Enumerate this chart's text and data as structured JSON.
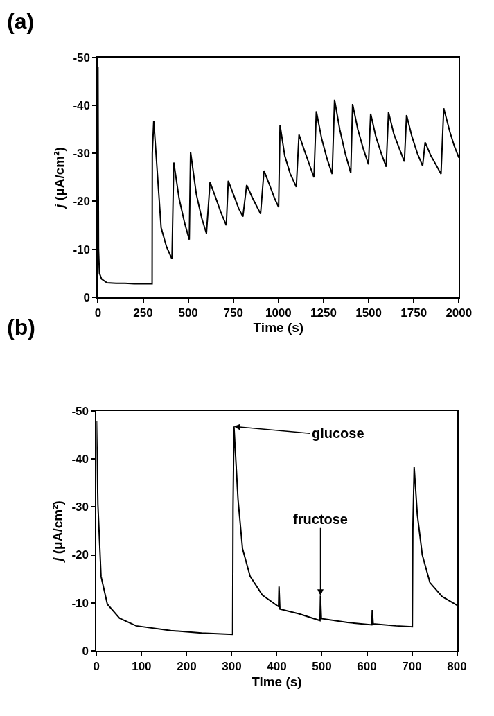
{
  "chart_data": [
    {
      "type": "line",
      "title": "(a)",
      "xlabel": "Time (s)",
      "ylabel": "j (μA/cm²)",
      "xlim": [
        0,
        2000
      ],
      "xticks": [
        0,
        250,
        500,
        750,
        1000,
        1250,
        1500,
        1750,
        2000
      ],
      "ylim": [
        0,
        -50
      ],
      "yticks": [
        0,
        -10,
        -20,
        -30,
        -40,
        -50
      ],
      "marker": "none",
      "line_style": "solid",
      "series": [
        {
          "color": "#000000",
          "x": [
            0,
            3,
            8,
            20,
            50,
            100,
            150,
            200,
            250,
            300,
            301,
            309,
            350,
            380,
            410,
            420,
            450,
            480,
            506,
            513,
            545,
            575,
            601,
            621,
            650,
            680,
            711,
            722,
            750,
            780,
            803,
            824,
            855,
            901,
            920,
            950,
            980,
            1001,
            1009,
            1035,
            1065,
            1099,
            1114,
            1145,
            1175,
            1197,
            1210,
            1240,
            1270,
            1298,
            1311,
            1340,
            1370,
            1401,
            1411,
            1440,
            1470,
            1499,
            1511,
            1540,
            1570,
            1597,
            1610,
            1640,
            1670,
            1698,
            1710,
            1740,
            1770,
            1799,
            1813,
            1845,
            1875,
            1901,
            1916,
            1950,
            1975,
            2000
          ],
          "values": [
            -48,
            -10,
            -5,
            -3.8,
            -3,
            -2.9,
            -2.9,
            -2.8,
            -2.8,
            -2.8,
            -30,
            -36.8,
            -14.5,
            -10.5,
            -8.0,
            -28.1,
            -20.5,
            -15.5,
            -12.0,
            -30.3,
            -21.5,
            -16.5,
            -13.3,
            -24.0,
            -21,
            -17.8,
            -15.0,
            -24.3,
            -21.5,
            -18.5,
            -16.8,
            -23.4,
            -20.8,
            -17.4,
            -26.4,
            -23.5,
            -20.5,
            -18.8,
            -35.9,
            -29.5,
            -25.8,
            -23.0,
            -33.9,
            -30.5,
            -27.3,
            -25.0,
            -38.8,
            -33,
            -28.8,
            -25.7,
            -41.2,
            -35,
            -30,
            -25.9,
            -40.3,
            -35,
            -31,
            -27.7,
            -38.3,
            -33.5,
            -30,
            -27.2,
            -38.6,
            -34,
            -31,
            -28.3,
            -38.0,
            -33.5,
            -30,
            -27.4,
            -32.3,
            -29.5,
            -27.5,
            -25.7,
            -39.4,
            -34.5,
            -31.5,
            -29.1
          ]
        }
      ]
    },
    {
      "type": "line",
      "title": "(b)",
      "xlabel": "Time (s)",
      "ylabel": "j (μA/cm²)",
      "xlim": [
        0,
        800
      ],
      "xticks": [
        0,
        100,
        200,
        300,
        400,
        500,
        600,
        700,
        800
      ],
      "ylim": [
        0,
        -50
      ],
      "yticks": [
        0,
        -10,
        -20,
        -30,
        -40,
        -50
      ],
      "marker": "none",
      "line_style": "solid",
      "annotations": [
        {
          "text": "glucose",
          "x": 305,
          "y": -46.8
        },
        {
          "text": "fructose",
          "x": 497,
          "y": -11.5
        }
      ],
      "series": [
        {
          "color": "#000000",
          "x": [
            0,
            3,
            10,
            24,
            51,
            88,
            165,
            233,
            302,
            303,
            305,
            314,
            324,
            341,
            368,
            404,
            405,
            407,
            449,
            496,
            497,
            499,
            557,
            611,
            612,
            614,
            665,
            701,
            702,
            705,
            712,
            723,
            740,
            767,
            800
          ],
          "values": [
            -48,
            -30.6,
            -15.5,
            -9.7,
            -6.8,
            -5.2,
            -4.2,
            -3.7,
            -3.4,
            -30,
            -46.8,
            -31.6,
            -21.3,
            -15.5,
            -11.6,
            -9.2,
            -13.4,
            -8.7,
            -7.7,
            -6.3,
            -11.5,
            -6.7,
            -5.9,
            -5.4,
            -8.5,
            -5.6,
            -5.2,
            -5.0,
            -25,
            -38.3,
            -28.4,
            -20.0,
            -14.2,
            -11.3,
            -9.5
          ]
        }
      ]
    }
  ]
}
